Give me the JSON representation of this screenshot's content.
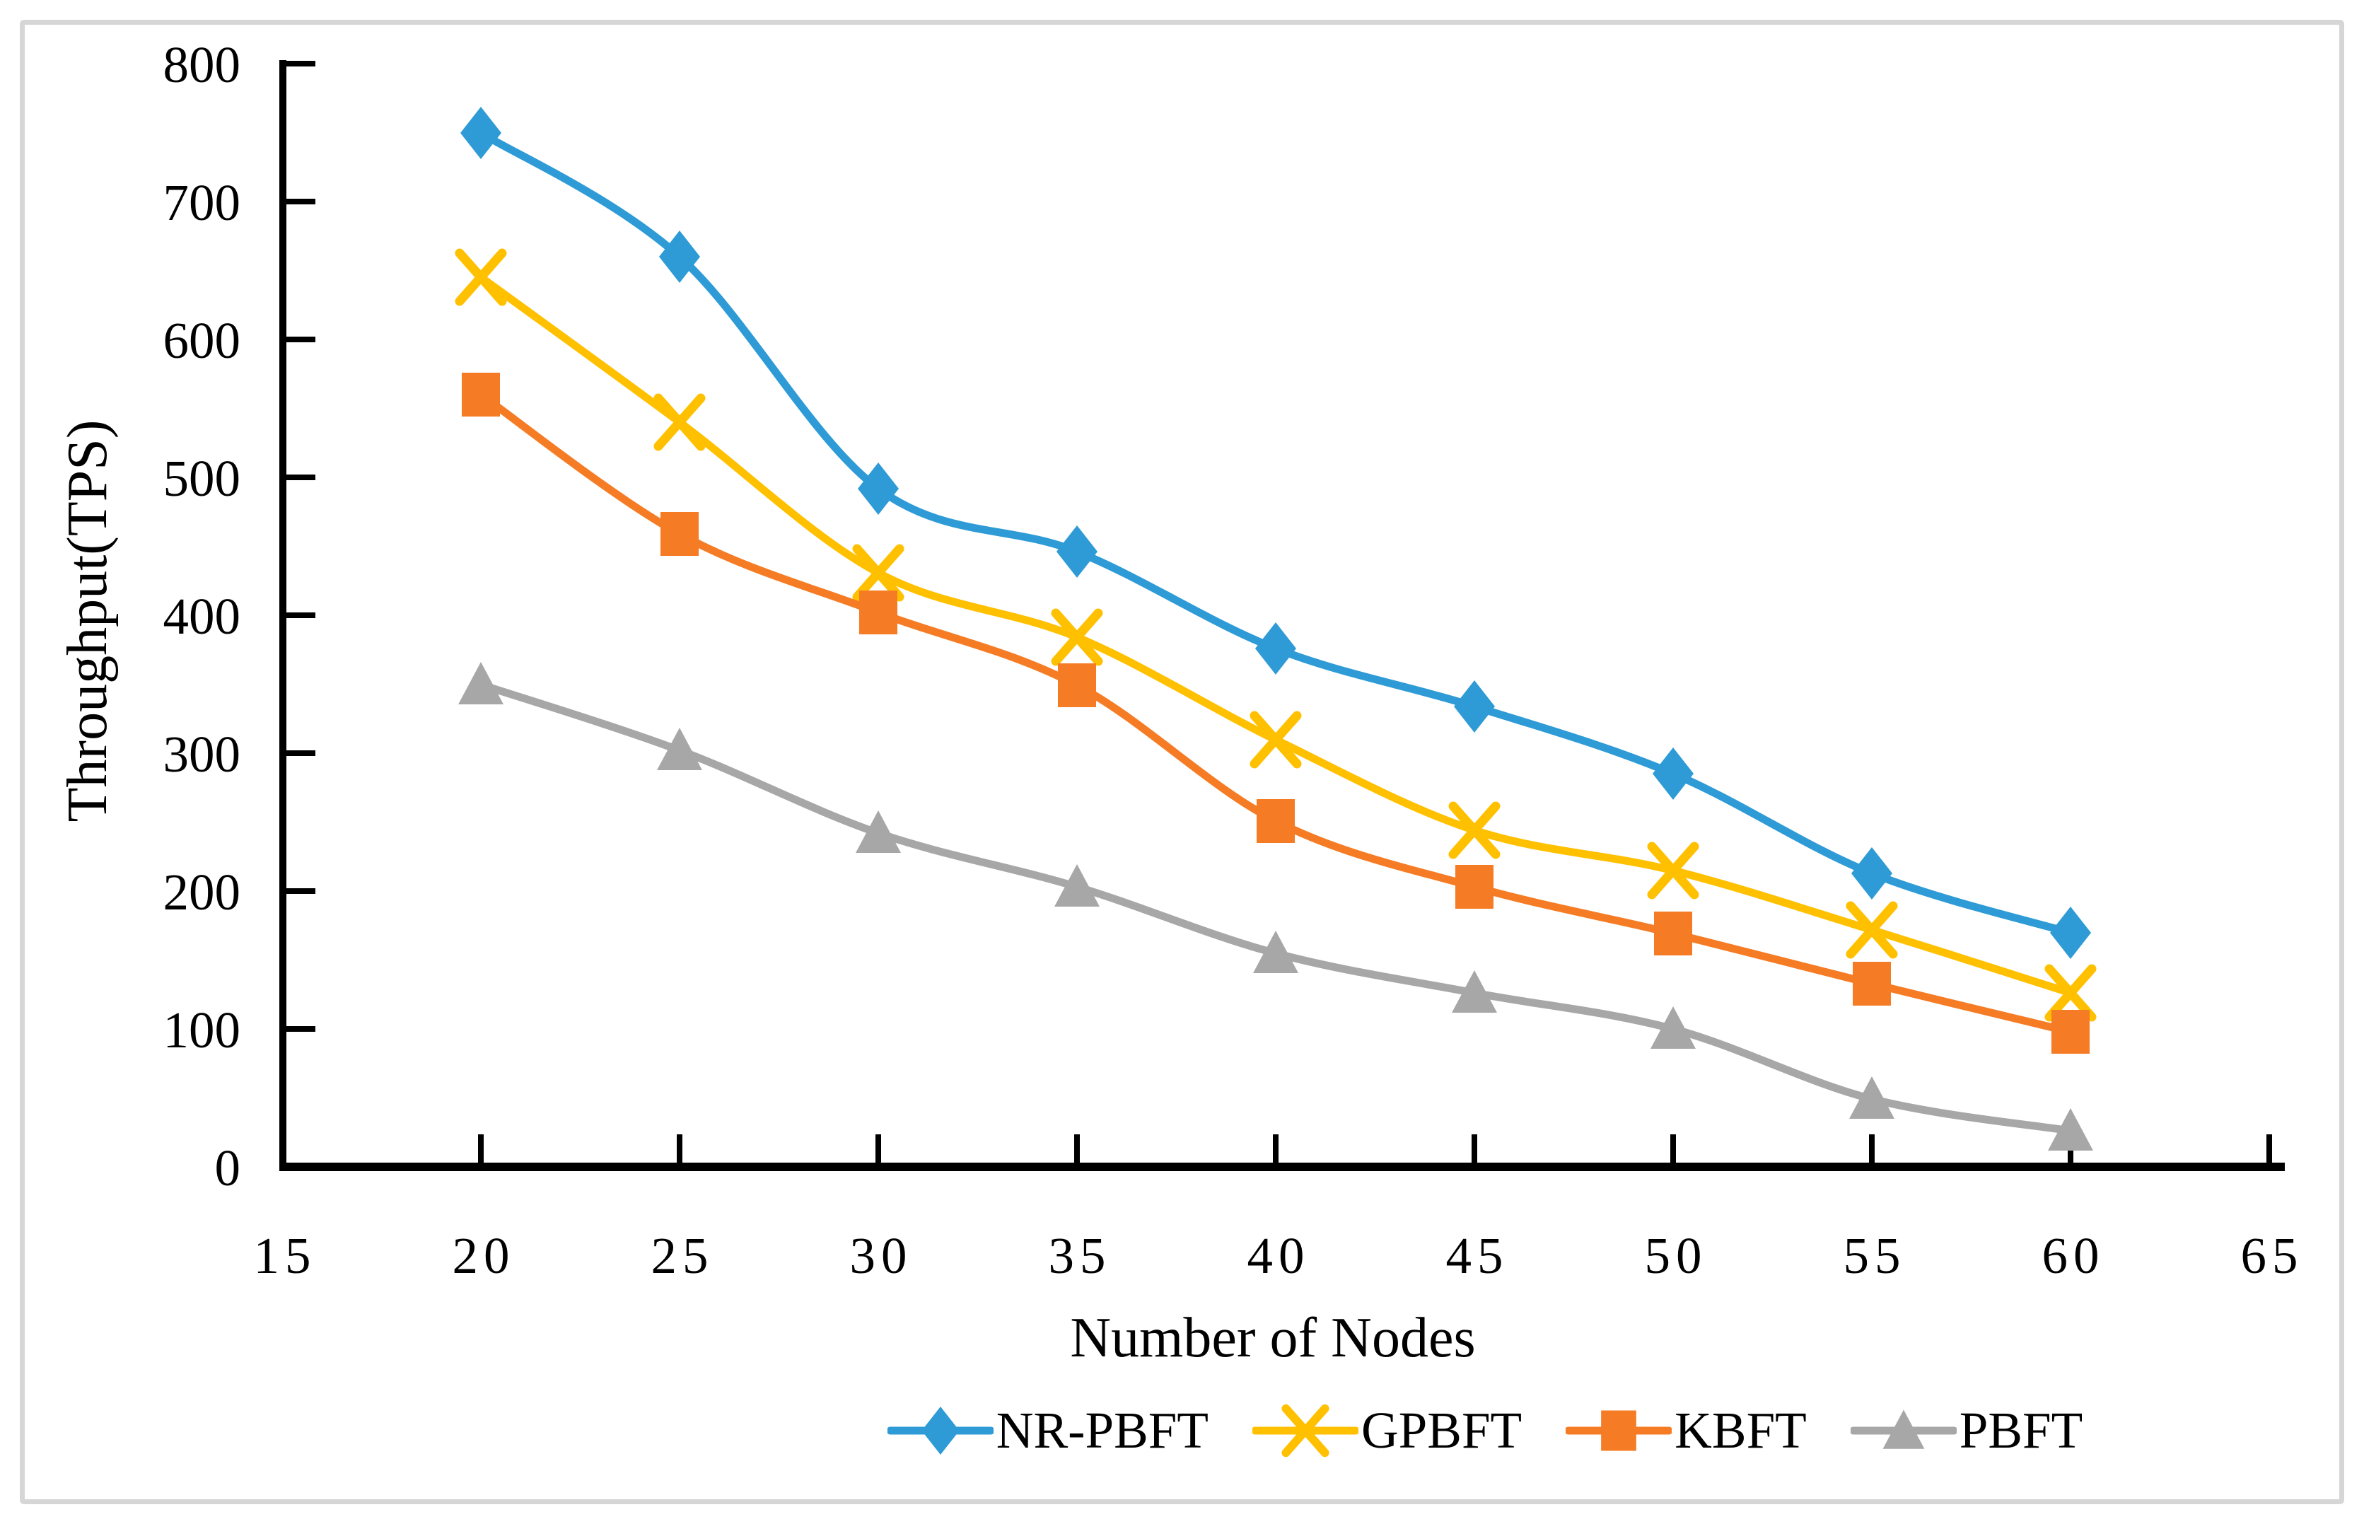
{
  "figure": {
    "background_color": "#ffffff",
    "border_color": "#d6d6d6",
    "axis_color": "#000000",
    "text_color": "#000000"
  },
  "chart_data": {
    "type": "line",
    "title": "",
    "xlabel": "Number of Nodes",
    "ylabel": "Throughput(TPS)",
    "x": [
      20,
      25,
      30,
      35,
      40,
      45,
      50,
      55,
      60
    ],
    "xlim": [
      15,
      65
    ],
    "ylim": [
      0,
      800
    ],
    "x_ticks": [
      15,
      20,
      25,
      30,
      35,
      40,
      45,
      50,
      55,
      60,
      65
    ],
    "y_ticks": [
      0,
      100,
      200,
      300,
      400,
      500,
      600,
      700,
      800
    ],
    "grid": false,
    "line_smoothing": true,
    "legend_position": "bottom",
    "series": [
      {
        "name": "NR-PBFT",
        "color": "#2E9BD6",
        "marker": "diamond",
        "values": [
          750,
          660,
          492,
          446,
          376,
          334,
          285,
          213,
          170
        ]
      },
      {
        "name": "GPBFT",
        "color": "#FFC000",
        "marker": "x",
        "values": [
          645,
          540,
          431,
          384,
          310,
          244,
          215,
          172,
          126
        ]
      },
      {
        "name": "KBFT",
        "color": "#F57C24",
        "marker": "square",
        "values": [
          560,
          459,
          402,
          349,
          251,
          203,
          169,
          133,
          98
        ]
      },
      {
        "name": "PBFT",
        "color": "#A7A7A7",
        "marker": "triangle",
        "values": [
          350,
          302,
          242,
          203,
          155,
          126,
          100,
          49,
          26
        ]
      }
    ]
  }
}
